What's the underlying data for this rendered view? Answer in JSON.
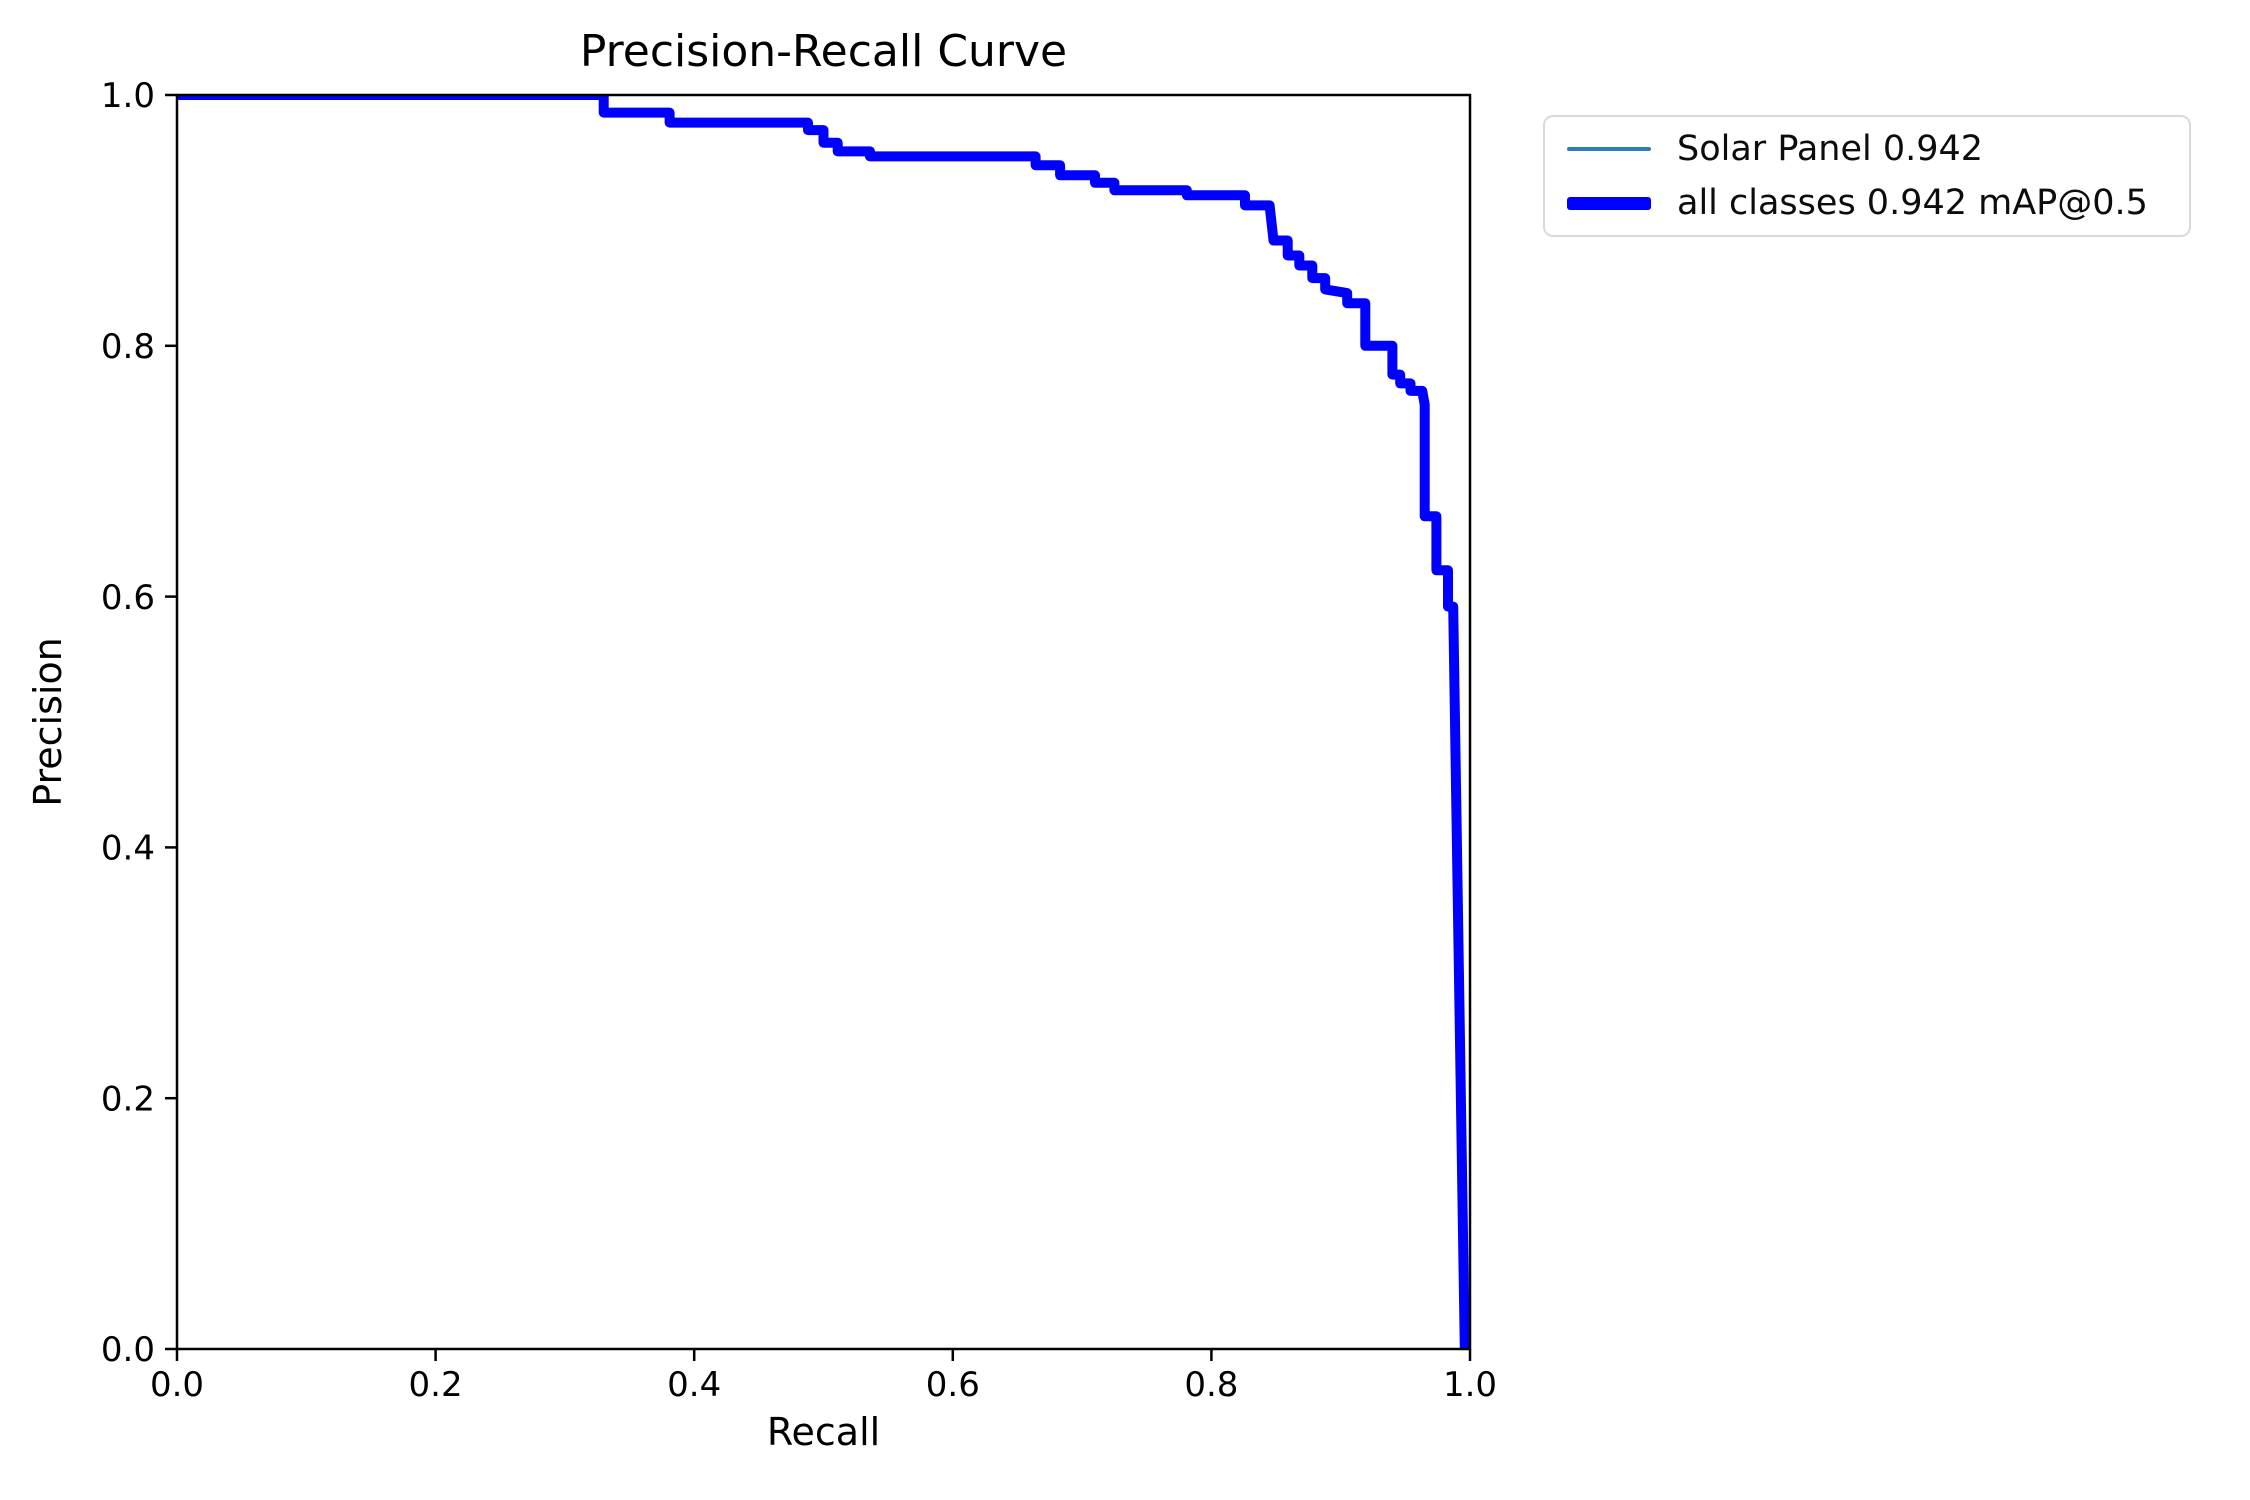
{
  "chart_data": {
    "type": "line",
    "title": "Precision-Recall Curve",
    "xlabel": "Recall",
    "ylabel": "Precision",
    "xlim": [
      0.0,
      1.0
    ],
    "ylim": [
      0.0,
      1.0
    ],
    "x_ticks": [
      "0.0",
      "0.2",
      "0.4",
      "0.6",
      "0.8",
      "1.0"
    ],
    "y_ticks": [
      "0.0",
      "0.2",
      "0.4",
      "0.6",
      "0.8",
      "1.0"
    ],
    "grid": false,
    "legend_position": "upper right, outside axes",
    "axes_color": "#000000",
    "pr_curve_points": [
      [
        0.0,
        1.0
      ],
      [
        0.33,
        1.0
      ],
      [
        0.33,
        0.986
      ],
      [
        0.381,
        0.986
      ],
      [
        0.381,
        0.978
      ],
      [
        0.488,
        0.978
      ],
      [
        0.488,
        0.972
      ],
      [
        0.5,
        0.972
      ],
      [
        0.5,
        0.962
      ],
      [
        0.511,
        0.962
      ],
      [
        0.511,
        0.955
      ],
      [
        0.536,
        0.955
      ],
      [
        0.536,
        0.951
      ],
      [
        0.664,
        0.951
      ],
      [
        0.664,
        0.944
      ],
      [
        0.683,
        0.944
      ],
      [
        0.683,
        0.936
      ],
      [
        0.71,
        0.936
      ],
      [
        0.71,
        0.93
      ],
      [
        0.725,
        0.93
      ],
      [
        0.725,
        0.924
      ],
      [
        0.781,
        0.924
      ],
      [
        0.781,
        0.92
      ],
      [
        0.826,
        0.92
      ],
      [
        0.826,
        0.912
      ],
      [
        0.845,
        0.912
      ],
      [
        0.848,
        0.884
      ],
      [
        0.859,
        0.884
      ],
      [
        0.859,
        0.872
      ],
      [
        0.868,
        0.872
      ],
      [
        0.868,
        0.864
      ],
      [
        0.878,
        0.864
      ],
      [
        0.878,
        0.854
      ],
      [
        0.888,
        0.854
      ],
      [
        0.888,
        0.845
      ],
      [
        0.905,
        0.842
      ],
      [
        0.905,
        0.834
      ],
      [
        0.919,
        0.834
      ],
      [
        0.919,
        0.8
      ],
      [
        0.94,
        0.8
      ],
      [
        0.94,
        0.777
      ],
      [
        0.946,
        0.777
      ],
      [
        0.946,
        0.77
      ],
      [
        0.954,
        0.77
      ],
      [
        0.954,
        0.764
      ],
      [
        0.963,
        0.764
      ],
      [
        0.965,
        0.753
      ],
      [
        0.965,
        0.664
      ],
      [
        0.974,
        0.664
      ],
      [
        0.974,
        0.621
      ],
      [
        0.983,
        0.621
      ],
      [
        0.983,
        0.592
      ],
      [
        0.987,
        0.592
      ],
      [
        0.996,
        0.0
      ]
    ],
    "series": [
      {
        "name": "Solar Panel 0.942",
        "color": "#2e7cb8",
        "line_width": 3,
        "points_ref": "pr_curve_points"
      },
      {
        "name": "all classes 0.942 mAP@0.5",
        "color": "#0000ff",
        "line_width": 10,
        "points_ref": "pr_curve_points"
      }
    ]
  },
  "legend": {
    "items": [
      {
        "label": "Solar Panel 0.942"
      },
      {
        "label": "all classes 0.942 mAP@0.5"
      }
    ]
  }
}
